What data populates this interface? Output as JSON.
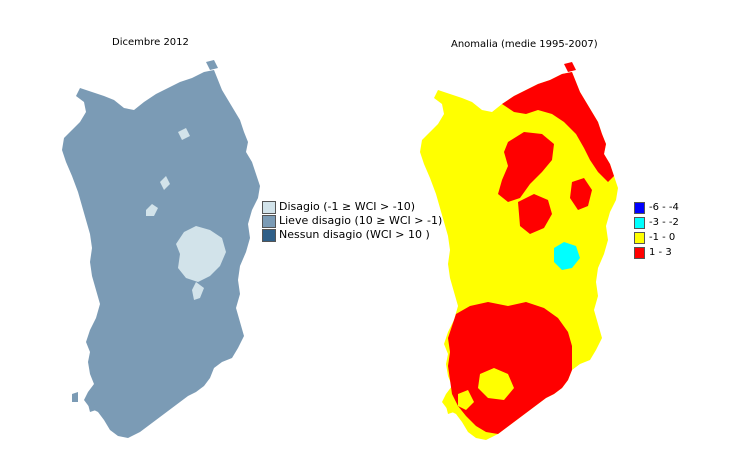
{
  "maps": [
    {
      "title": "Dicembre 2012",
      "legend": [
        {
          "label": "Disagio (-1 ≥ WCI > -10)",
          "color": "#d2e3ea"
        },
        {
          "label": "Lieve disagio (10 ≥ WCI > -1)",
          "color": "#7b9bb5"
        },
        {
          "label": "Nessun disagio (WCI > 10 )",
          "color": "#2f5f88"
        }
      ]
    },
    {
      "title": "Anomalia (medie 1995-2007)",
      "legend": [
        {
          "label": "-6 - -4",
          "color": "#0000ff"
        },
        {
          "label": "-3 - -2",
          "color": "#00ffff"
        },
        {
          "label": "-1 - 0",
          "color": "#ffff00"
        },
        {
          "label": "1 - 3",
          "color": "#ff0000"
        }
      ]
    }
  ]
}
